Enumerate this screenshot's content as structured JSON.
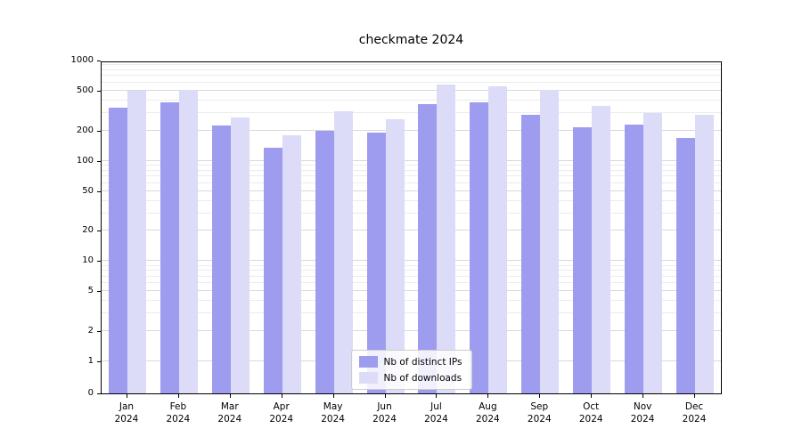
{
  "chart_data": {
    "type": "bar",
    "title": "checkmate 2024",
    "categories": [
      "Jan",
      "Feb",
      "Mar",
      "Apr",
      "May",
      "Jun",
      "Jul",
      "Aug",
      "Sep",
      "Oct",
      "Nov",
      "Dec"
    ],
    "x_year": "2024",
    "series": [
      {
        "name": "Nb of distinct IPs",
        "color": "#9e9cee",
        "values": [
          340,
          380,
          225,
          135,
          200,
          190,
          370,
          385,
          285,
          215,
          230,
          170
        ]
      },
      {
        "name": "Nb of downloads",
        "color": "#dcdbf8",
        "values": [
          500,
          505,
          270,
          180,
          310,
          260,
          580,
          550,
          510,
          350,
          300,
          290
        ]
      }
    ],
    "yscale": "symlog",
    "ylim": [
      0,
      1000
    ],
    "yticks": [
      1000,
      500,
      200,
      100,
      50,
      20,
      10,
      5,
      2,
      1,
      0
    ],
    "grid": "horizontal",
    "legend_position": "lower center"
  },
  "colors": {
    "grid_major": "#d9d9d9",
    "grid_minor": "#ececec",
    "spine": "#000000",
    "background": "#ffffff"
  }
}
